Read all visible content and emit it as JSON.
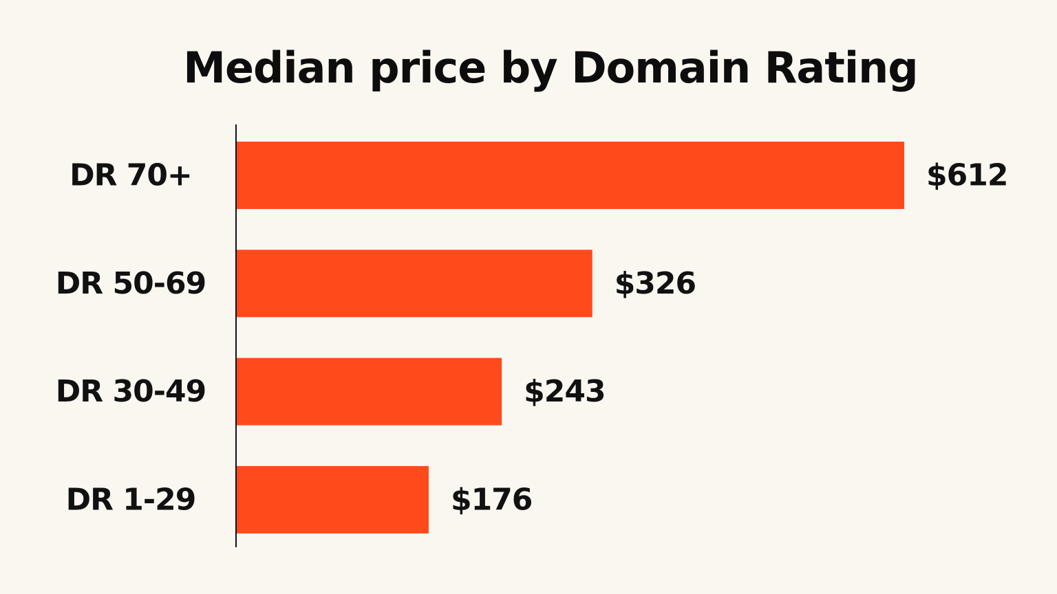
{
  "colors": {
    "background": "#faf7f1",
    "bar": "#ff4a1c",
    "text": "#111111"
  },
  "chart_data": {
    "type": "bar",
    "orientation": "horizontal",
    "title": "Median price by Domain Rating",
    "xlabel": "",
    "ylabel": "",
    "categories": [
      "DR 70+",
      "DR 50-69",
      "DR 30-49",
      "DR 1-29"
    ],
    "values": [
      612,
      326,
      243,
      176
    ],
    "value_labels": [
      "$612",
      "$326",
      "$243",
      "$176"
    ],
    "xlim": [
      0,
      612
    ],
    "grid": false,
    "legend": "none"
  }
}
